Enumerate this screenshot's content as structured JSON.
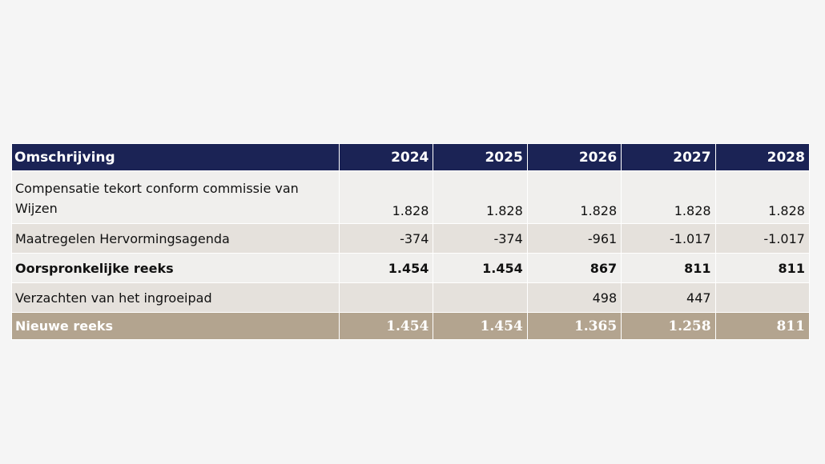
{
  "table": {
    "header": {
      "description": "Omschrijving",
      "years": [
        "2024",
        "2025",
        "2026",
        "2027",
        "2028"
      ]
    },
    "rows": [
      {
        "label": "Compensatie tekort conform commissie van Wijzen",
        "values": [
          "1.828",
          "1.828",
          "1.828",
          "1.828",
          "1.828"
        ]
      },
      {
        "label": "Maatregelen Hervormingsagenda",
        "values": [
          "-374",
          "-374",
          "-961",
          "-1.017",
          "-1.017"
        ]
      },
      {
        "label": "Oorspronkelijke reeks",
        "values": [
          "1.454",
          "1.454",
          "867",
          "811",
          "811"
        ]
      },
      {
        "label": "Verzachten van het ingroeipad",
        "values": [
          "",
          "",
          "498",
          "447",
          ""
        ]
      },
      {
        "label": "Nieuwe reeks",
        "values": [
          "1.454",
          "1.454",
          "1.365",
          "1.258",
          "811"
        ]
      }
    ]
  },
  "colors": {
    "header_bg": "#1b2355",
    "total_bg": "#b3a48f",
    "row_light": "#f0efed",
    "row_grey": "#e5e1dc"
  }
}
